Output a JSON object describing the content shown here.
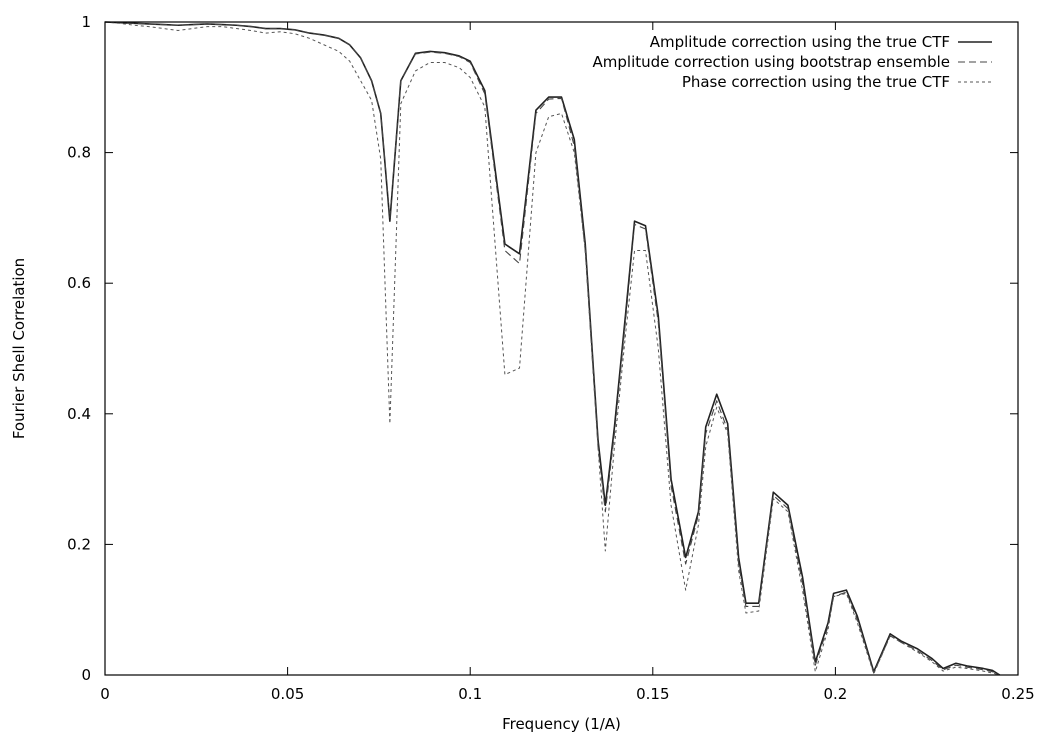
{
  "chart_data": {
    "type": "line",
    "title": "",
    "xlabel": "Frequency (1/A)",
    "ylabel": "Fourier Shell Correlation",
    "xlim": [
      0,
      0.25
    ],
    "ylim": [
      0,
      1
    ],
    "xticks": [
      0,
      0.05,
      0.1,
      0.15,
      0.2,
      0.25
    ],
    "xtick_labels": [
      "0",
      "0.05",
      "0.1",
      "0.15",
      "0.2",
      "0.25"
    ],
    "yticks": [
      0,
      0.2,
      0.4,
      0.6,
      0.8,
      1
    ],
    "ytick_labels": [
      "0",
      "0.2",
      "0.4",
      "0.6",
      "0.8",
      "1"
    ],
    "grid": false,
    "legend_position": "top-right",
    "series": [
      {
        "name": "Amplitude correction using the true CTF",
        "style": "solid",
        "color": "#222222",
        "points": [
          [
            0,
            1
          ],
          [
            0.004,
            0.999
          ],
          [
            0.008,
            0.998
          ],
          [
            0.012,
            0.997
          ],
          [
            0.016,
            0.996
          ],
          [
            0.02,
            0.995
          ],
          [
            0.024,
            0.996
          ],
          [
            0.028,
            0.997
          ],
          [
            0.032,
            0.996
          ],
          [
            0.036,
            0.995
          ],
          [
            0.04,
            0.993
          ],
          [
            0.044,
            0.99
          ],
          [
            0.048,
            0.99
          ],
          [
            0.052,
            0.988
          ],
          [
            0.056,
            0.983
          ],
          [
            0.06,
            0.98
          ],
          [
            0.064,
            0.975
          ],
          [
            0.067,
            0.965
          ],
          [
            0.07,
            0.945
          ],
          [
            0.073,
            0.91
          ],
          [
            0.0755,
            0.86
          ],
          [
            0.078,
            0.695
          ],
          [
            0.081,
            0.91
          ],
          [
            0.085,
            0.952
          ],
          [
            0.089,
            0.955
          ],
          [
            0.093,
            0.953
          ],
          [
            0.097,
            0.948
          ],
          [
            0.1,
            0.94
          ],
          [
            0.104,
            0.895
          ],
          [
            0.1095,
            0.66
          ],
          [
            0.1135,
            0.645
          ],
          [
            0.118,
            0.865
          ],
          [
            0.1215,
            0.885
          ],
          [
            0.125,
            0.885
          ],
          [
            0.1285,
            0.82
          ],
          [
            0.1315,
            0.66
          ],
          [
            0.135,
            0.36
          ],
          [
            0.137,
            0.26
          ],
          [
            0.1395,
            0.38
          ],
          [
            0.1425,
            0.55
          ],
          [
            0.145,
            0.695
          ],
          [
            0.148,
            0.688
          ],
          [
            0.1515,
            0.55
          ],
          [
            0.155,
            0.3
          ],
          [
            0.159,
            0.18
          ],
          [
            0.1625,
            0.25
          ],
          [
            0.1645,
            0.38
          ],
          [
            0.1675,
            0.43
          ],
          [
            0.1705,
            0.385
          ],
          [
            0.1735,
            0.18
          ],
          [
            0.1755,
            0.11
          ],
          [
            0.179,
            0.11
          ],
          [
            0.183,
            0.28
          ],
          [
            0.187,
            0.26
          ],
          [
            0.191,
            0.15
          ],
          [
            0.1945,
            0.02
          ],
          [
            0.198,
            0.08
          ],
          [
            0.1995,
            0.125
          ],
          [
            0.203,
            0.13
          ],
          [
            0.206,
            0.09
          ],
          [
            0.2105,
            0.005
          ],
          [
            0.215,
            0.063
          ],
          [
            0.218,
            0.052
          ],
          [
            0.2225,
            0.04
          ],
          [
            0.2265,
            0.025
          ],
          [
            0.2295,
            0.01
          ],
          [
            0.233,
            0.018
          ],
          [
            0.236,
            0.014
          ],
          [
            0.2405,
            0.01
          ],
          [
            0.243,
            0.007
          ],
          [
            0.245,
            0
          ]
        ]
      },
      {
        "name": "Amplitude correction using bootstrap ensemble",
        "style": "dashed",
        "color": "#444444",
        "points": [
          [
            0,
            1
          ],
          [
            0.004,
            0.999
          ],
          [
            0.008,
            0.998
          ],
          [
            0.012,
            0.997
          ],
          [
            0.016,
            0.996
          ],
          [
            0.02,
            0.995
          ],
          [
            0.024,
            0.996
          ],
          [
            0.028,
            0.997
          ],
          [
            0.032,
            0.996
          ],
          [
            0.036,
            0.995
          ],
          [
            0.04,
            0.993
          ],
          [
            0.044,
            0.99
          ],
          [
            0.048,
            0.99
          ],
          [
            0.052,
            0.988
          ],
          [
            0.056,
            0.983
          ],
          [
            0.06,
            0.98
          ],
          [
            0.064,
            0.975
          ],
          [
            0.067,
            0.965
          ],
          [
            0.07,
            0.945
          ],
          [
            0.073,
            0.91
          ],
          [
            0.0755,
            0.86
          ],
          [
            0.078,
            0.7
          ],
          [
            0.081,
            0.91
          ],
          [
            0.085,
            0.951
          ],
          [
            0.089,
            0.954
          ],
          [
            0.093,
            0.952
          ],
          [
            0.097,
            0.947
          ],
          [
            0.1,
            0.938
          ],
          [
            0.104,
            0.89
          ],
          [
            0.1095,
            0.65
          ],
          [
            0.1135,
            0.63
          ],
          [
            0.118,
            0.86
          ],
          [
            0.1215,
            0.882
          ],
          [
            0.125,
            0.883
          ],
          [
            0.1285,
            0.81
          ],
          [
            0.1315,
            0.65
          ],
          [
            0.135,
            0.35
          ],
          [
            0.137,
            0.25
          ],
          [
            0.1395,
            0.37
          ],
          [
            0.1425,
            0.54
          ],
          [
            0.145,
            0.69
          ],
          [
            0.148,
            0.683
          ],
          [
            0.1515,
            0.54
          ],
          [
            0.155,
            0.29
          ],
          [
            0.159,
            0.17
          ],
          [
            0.1625,
            0.245
          ],
          [
            0.1645,
            0.37
          ],
          [
            0.1675,
            0.42
          ],
          [
            0.1705,
            0.375
          ],
          [
            0.1735,
            0.17
          ],
          [
            0.1755,
            0.105
          ],
          [
            0.179,
            0.105
          ],
          [
            0.183,
            0.275
          ],
          [
            0.187,
            0.255
          ],
          [
            0.191,
            0.14
          ],
          [
            0.1945,
            0.015
          ],
          [
            0.198,
            0.075
          ],
          [
            0.1995,
            0.12
          ],
          [
            0.203,
            0.127
          ],
          [
            0.206,
            0.085
          ],
          [
            0.2105,
            0.003
          ],
          [
            0.215,
            0.06
          ],
          [
            0.218,
            0.05
          ],
          [
            0.2225,
            0.037
          ],
          [
            0.2265,
            0.022
          ],
          [
            0.2295,
            0.008
          ],
          [
            0.233,
            0.015
          ],
          [
            0.236,
            0.012
          ],
          [
            0.2405,
            0.008
          ],
          [
            0.243,
            0.005
          ],
          [
            0.245,
            0
          ]
        ]
      },
      {
        "name": "Phase correction using the true CTF",
        "style": "dotted",
        "color": "#555555",
        "points": [
          [
            0,
            1
          ],
          [
            0.004,
            0.998
          ],
          [
            0.008,
            0.995
          ],
          [
            0.012,
            0.993
          ],
          [
            0.016,
            0.99
          ],
          [
            0.02,
            0.987
          ],
          [
            0.024,
            0.99
          ],
          [
            0.028,
            0.993
          ],
          [
            0.032,
            0.993
          ],
          [
            0.036,
            0.99
          ],
          [
            0.04,
            0.987
          ],
          [
            0.044,
            0.983
          ],
          [
            0.048,
            0.985
          ],
          [
            0.052,
            0.982
          ],
          [
            0.056,
            0.975
          ],
          [
            0.06,
            0.965
          ],
          [
            0.064,
            0.955
          ],
          [
            0.067,
            0.94
          ],
          [
            0.07,
            0.91
          ],
          [
            0.073,
            0.88
          ],
          [
            0.0755,
            0.79
          ],
          [
            0.078,
            0.385
          ],
          [
            0.081,
            0.875
          ],
          [
            0.085,
            0.925
          ],
          [
            0.089,
            0.938
          ],
          [
            0.093,
            0.938
          ],
          [
            0.097,
            0.93
          ],
          [
            0.1,
            0.915
          ],
          [
            0.104,
            0.87
          ],
          [
            0.1095,
            0.46
          ],
          [
            0.1135,
            0.47
          ],
          [
            0.118,
            0.8
          ],
          [
            0.1215,
            0.855
          ],
          [
            0.125,
            0.86
          ],
          [
            0.1285,
            0.8
          ],
          [
            0.1315,
            0.65
          ],
          [
            0.135,
            0.35
          ],
          [
            0.137,
            0.19
          ],
          [
            0.1395,
            0.35
          ],
          [
            0.1425,
            0.52
          ],
          [
            0.145,
            0.65
          ],
          [
            0.148,
            0.65
          ],
          [
            0.1515,
            0.5
          ],
          [
            0.155,
            0.26
          ],
          [
            0.159,
            0.13
          ],
          [
            0.1625,
            0.23
          ],
          [
            0.1645,
            0.35
          ],
          [
            0.1675,
            0.41
          ],
          [
            0.1705,
            0.37
          ],
          [
            0.1735,
            0.16
          ],
          [
            0.1755,
            0.095
          ],
          [
            0.179,
            0.098
          ],
          [
            0.183,
            0.27
          ],
          [
            0.187,
            0.25
          ],
          [
            0.191,
            0.13
          ],
          [
            0.1945,
            0.005
          ],
          [
            0.198,
            0.07
          ],
          [
            0.1995,
            0.12
          ],
          [
            0.203,
            0.125
          ],
          [
            0.206,
            0.08
          ],
          [
            0.2105,
            0.002
          ],
          [
            0.215,
            0.06
          ],
          [
            0.218,
            0.05
          ],
          [
            0.2225,
            0.035
          ],
          [
            0.2265,
            0.02
          ],
          [
            0.2295,
            0.006
          ],
          [
            0.233,
            0.012
          ],
          [
            0.236,
            0.01
          ],
          [
            0.2405,
            0.006
          ],
          [
            0.243,
            0.003
          ],
          [
            0.245,
            0
          ]
        ]
      }
    ]
  }
}
